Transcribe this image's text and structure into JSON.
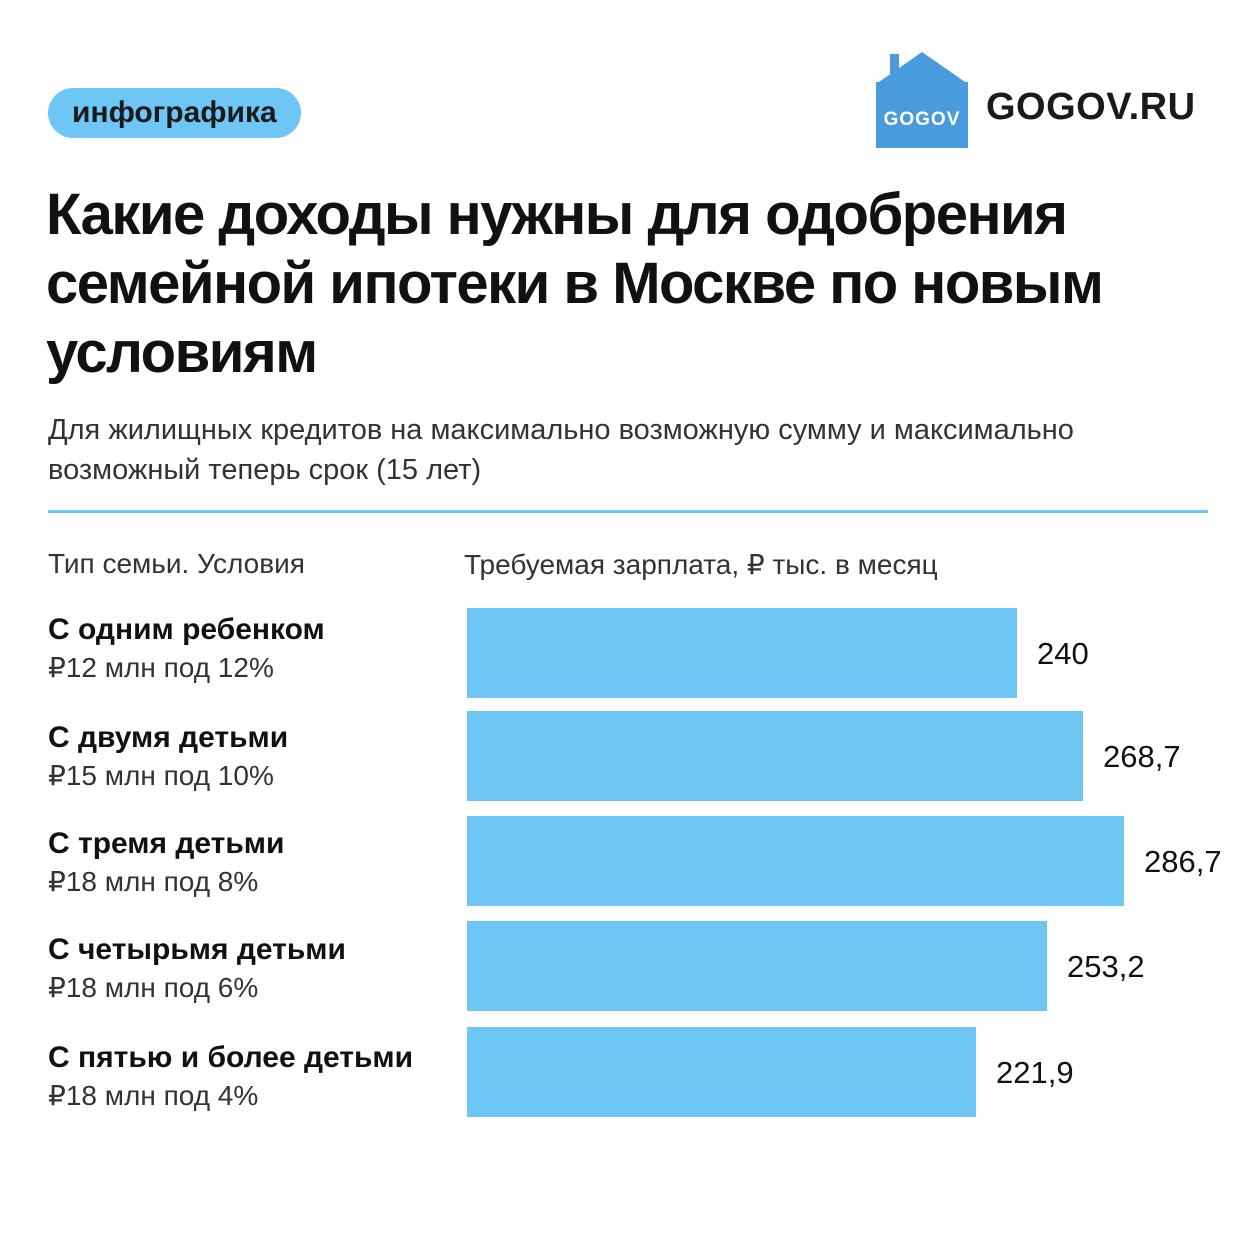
{
  "badge": "инфографика",
  "logo": {
    "text": "GOGOV",
    "color": "#4A9BDC"
  },
  "brand": "GOGOV.RU",
  "title": "Какие доходы нужны для одобрения семейной ипотеки в Москве по новым условиям",
  "subtitle": "Для жилищных кредитов на максимально возможную сумму и максимально возможный теперь срок (15 лет)",
  "columns": {
    "left": "Тип семьи. Условия",
    "right": "Требуемая зарплата, ₽ тыс. в месяц"
  },
  "rows": [
    {
      "name": "С одним ребенком",
      "cond": "₽12 млн под 12%"
    },
    {
      "name": "С двумя детьми",
      "cond": "₽15 млн под 10%"
    },
    {
      "name": "С тремя детьми",
      "cond": "₽18 млн под 8%"
    },
    {
      "name": "С четырьмя детьми",
      "cond": "₽18 млн под 6%"
    },
    {
      "name": "С пятью и более детьми",
      "cond": "₽18 млн под 4%"
    }
  ],
  "chart_data": {
    "type": "bar",
    "orientation": "horizontal",
    "categories": [
      "С одним ребенком",
      "С двумя детьми",
      "С тремя детьми",
      "С четырьмя детьми",
      "С пятью и более детьми"
    ],
    "values": [
      240,
      268.7,
      286.7,
      253.2,
      221.9
    ],
    "value_labels": [
      "240",
      "268,7",
      "286,7",
      "253,2",
      "221,9"
    ],
    "xlabel": "Требуемая зарплата, ₽ тыс. в месяц",
    "xlim": [
      0,
      286.7
    ],
    "bar_color": "#6EC6F5",
    "grid": false,
    "legend": "none"
  }
}
